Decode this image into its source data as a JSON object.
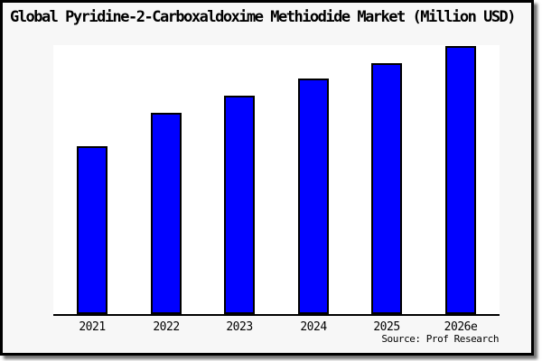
{
  "frame": {
    "background": "#f7f7f7",
    "border_color": "#000000"
  },
  "chart_data": {
    "type": "bar",
    "title": "Global Pyridine-2-Carboxaldoxime Methiodide Market (Million USD)",
    "categories": [
      "2021",
      "2022",
      "2023",
      "2024",
      "2025",
      "2026e"
    ],
    "values": [
      186,
      223,
      242,
      261,
      278,
      297
    ],
    "value_note": "no y-axis scale or gridlines shown; values are relative bar heights (plot-area pixels), axis area max = 298",
    "ylim": [
      0,
      298
    ],
    "xlabel": "",
    "ylabel": "",
    "grid": false,
    "legend": null,
    "bar_color": "#0000ff",
    "bar_border_color": "#000000",
    "plot_background": "#ffffff",
    "axis_color": "#000000",
    "source": "Source: Prof Research"
  }
}
